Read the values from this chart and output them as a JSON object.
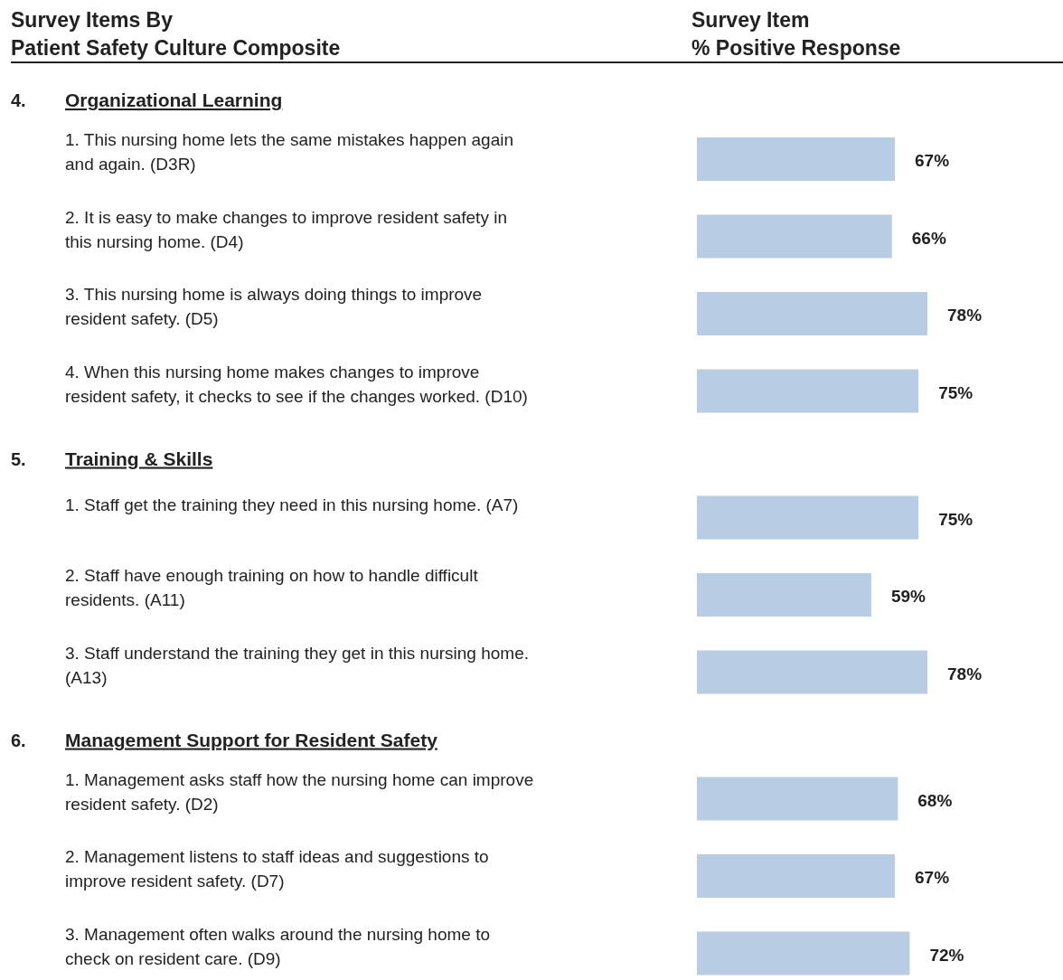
{
  "chart_data": [
    {
      "type": "bar",
      "orientation": "horizontal",
      "title": "4.\tOrganizational Learning",
      "ylabel": "Survey Items By\nPatient Safety Culture Composite",
      "xlabel": "Survey Item\n% Positive Response",
      "color": "#b8cce4",
      "categories": [
        "1. This nursing home lets the same mistakes happen again\nand again. (D3R)",
        "2. It is easy to make changes to improve resident safety in\nthis nursing home. (D4)",
        "3. This nursing home is always doing things to improve\nresident safety. (D5)",
        "4. When this nursing home makes changes to improve\nresident safety, it checks to see if the changes worked. (D10)"
      ],
      "values": [
        67,
        66,
        78,
        75
      ],
      "value_labels": [
        "67%",
        "66%",
        "78%",
        "75%"
      ]
    },
    {
      "type": "bar",
      "orientation": "horizontal",
      "title": "5.\tTraining & Skills",
      "color": "#b8cce4",
      "categories": [
        "1. Staff get the training they need in this nursing home. (A7)",
        "2. Staff have enough training on how to handle difficult\nresidents. (A11)",
        "3. Staff understand the training they get in this nursing home.\n(A13)"
      ],
      "values": [
        75,
        59,
        78
      ],
      "value_labels": [
        "75%",
        "59%",
        "78%"
      ]
    },
    {
      "type": "bar",
      "orientation": "horizontal",
      "title": "6.\tManagement Support for Resident Safety",
      "color": "#b8cce4",
      "categories": [
        "1. Management asks staff how the nursing home can improve\nresident safety. (D2)",
        "2. Management listens to staff ideas and suggestions to\nimprove resident safety. (D7)",
        "3. Management often walks around the nursing home to\ncheck on resident care. (D9)"
      ],
      "values": [
        68,
        67,
        72
      ],
      "value_labels": [
        "68%",
        "67%",
        "72%"
      ]
    }
  ]
}
